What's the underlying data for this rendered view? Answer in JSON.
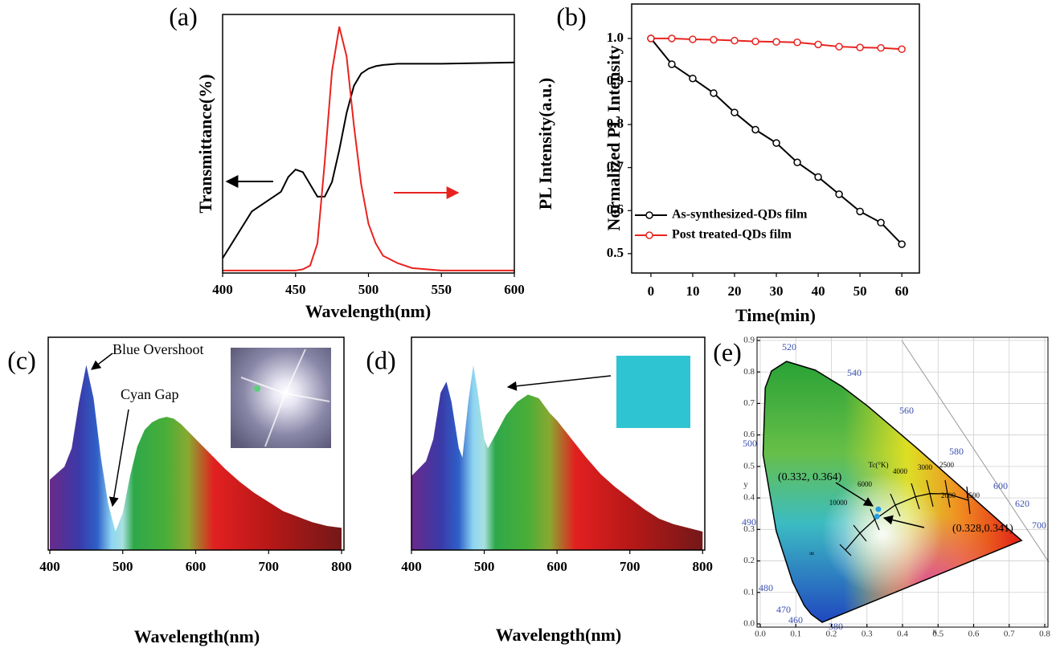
{
  "chart_data": [
    {
      "type": "line",
      "panel": "(a)",
      "xlabel": "Wavelength(nm)",
      "ylabel": "Transmittance(%)",
      "y2label": "PL Intensity(a.u.)",
      "xlim": [
        400,
        600
      ],
      "xticks": [
        400,
        450,
        500,
        550,
        600
      ],
      "ylim": [
        0,
        1.05
      ],
      "y2lim": [
        0,
        1.05
      ],
      "x": [
        400,
        420,
        440,
        445,
        450,
        455,
        460,
        465,
        470,
        475,
        480,
        485,
        490,
        495,
        500,
        505,
        510,
        520,
        530,
        550,
        600
      ],
      "series": [
        {
          "color": "#000000",
          "values": [
            0.06,
            0.25,
            0.33,
            0.39,
            0.42,
            0.41,
            0.36,
            0.31,
            0.31,
            0.37,
            0.5,
            0.65,
            0.76,
            0.81,
            0.83,
            0.84,
            0.845,
            0.85,
            0.85,
            0.85,
            0.855
          ]
        },
        {
          "color": "#e8231f",
          "axis": "y2",
          "values": [
            0.01,
            0.01,
            0.01,
            0.01,
            0.01,
            0.015,
            0.03,
            0.12,
            0.45,
            0.82,
            1.0,
            0.88,
            0.6,
            0.36,
            0.2,
            0.12,
            0.07,
            0.04,
            0.02,
            0.01,
            0.01
          ]
        }
      ]
    },
    {
      "type": "line",
      "panel": "(b)",
      "xlabel": "Time(min)",
      "ylabel": "Normalized PL Intensity",
      "xlim": [
        -4.6,
        64.2
      ],
      "xticks": [
        0,
        10,
        20,
        30,
        40,
        50,
        60
      ],
      "ylim": [
        0.455,
        1.08
      ],
      "yticks": [
        0.5,
        0.6,
        0.7,
        0.8,
        0.9,
        {
          "value": 1,
          "label": "1.0"
        }
      ],
      "markers": true,
      "legend": "lower left",
      "x": [
        0,
        5,
        10,
        15,
        20,
        25,
        30,
        35,
        40,
        45,
        50,
        55,
        60
      ],
      "series": [
        {
          "name": "As-synthesized-QDs film",
          "color": "#000000",
          "values": [
            1.0,
            0.94,
            0.907,
            0.873,
            0.828,
            0.788,
            0.757,
            0.712,
            0.678,
            0.638,
            0.598,
            0.572,
            0.522
          ]
        },
        {
          "name": "Post treated-QDs film",
          "color": "#e8231f",
          "values": [
            1.0,
            1.0,
            0.998,
            0.997,
            0.995,
            0.993,
            0.992,
            0.991,
            0.986,
            0.981,
            0.979,
            0.978,
            0.975
          ]
        }
      ]
    },
    {
      "type": "spectrum",
      "panel": "(c)",
      "xlabel": "Wavelength(nm)",
      "annotations": [
        "Blue Overshoot",
        "Cyan Gap"
      ],
      "xlim": [
        397.8,
        803.3
      ],
      "xticks": [
        400,
        500,
        600,
        700,
        800
      ],
      "ylim": [
        0,
        1.15
      ],
      "x": [
        400,
        420,
        430,
        440,
        450,
        460,
        470,
        480,
        490,
        500,
        510,
        520,
        530,
        540,
        550,
        560,
        570,
        580,
        590,
        600,
        620,
        640,
        660,
        680,
        700,
        720,
        740,
        760,
        780,
        800
      ],
      "values": [
        0.38,
        0.45,
        0.55,
        0.8,
        1.0,
        0.82,
        0.5,
        0.25,
        0.1,
        0.2,
        0.4,
        0.56,
        0.65,
        0.69,
        0.71,
        0.72,
        0.71,
        0.68,
        0.64,
        0.6,
        0.52,
        0.44,
        0.37,
        0.31,
        0.26,
        0.21,
        0.18,
        0.15,
        0.13,
        0.12
      ]
    },
    {
      "type": "spectrum",
      "panel": "(d)",
      "xlabel": "Wavelength(nm)",
      "xlim": [
        400,
        803
      ],
      "xticks": [
        400,
        500,
        600,
        700,
        800
      ],
      "ylim": [
        0,
        1.15
      ],
      "x": [
        400,
        420,
        430,
        440,
        448,
        455,
        465,
        470,
        478,
        485,
        490,
        500,
        505,
        515,
        530,
        545,
        560,
        575,
        590,
        600,
        620,
        640,
        660,
        680,
        700,
        720,
        740,
        760,
        780,
        800
      ],
      "values": [
        0.4,
        0.48,
        0.6,
        0.85,
        0.91,
        0.8,
        0.55,
        0.5,
        0.8,
        1.0,
        0.88,
        0.6,
        0.55,
        0.62,
        0.73,
        0.8,
        0.84,
        0.82,
        0.74,
        0.7,
        0.6,
        0.5,
        0.41,
        0.34,
        0.28,
        0.22,
        0.17,
        0.14,
        0.12,
        0.1
      ]
    },
    {
      "type": "cie",
      "panel": "(e)",
      "xlabel": "x",
      "ylabel": "y",
      "grid": true,
      "xlim": [
        0,
        0.8
      ],
      "xticks": [
        {
          "value": 0,
          "label": "0.0"
        },
        0.1,
        0.2,
        0.3,
        0.4,
        0.5,
        0.6,
        0.7,
        0.8
      ],
      "ylim": [
        0,
        0.9
      ],
      "yticks": [
        {
          "value": 0,
          "label": "0.0"
        },
        0.1,
        0.2,
        0.3,
        0.4,
        0.5,
        0.6,
        0.7,
        0.8,
        0.9
      ],
      "wavelength_labels": [
        "380",
        "460",
        "470",
        "480",
        "490",
        "500",
        "520",
        "540",
        "560",
        "580",
        "600",
        "620",
        "700"
      ],
      "cct_title": "Tc(°K)",
      "cct_labels": [
        "10000",
        "6000",
        "4000",
        "3000",
        "2500",
        "2000",
        "1500",
        "∞"
      ],
      "points": {
        "color": "#2a9fe0",
        "x": [
          0.332,
          0.328
        ],
        "values": [
          0.364,
          0.341
        ],
        "value_labels": [
          "(0.332, 0.364)",
          "(0.328,0.341)"
        ]
      }
    }
  ]
}
